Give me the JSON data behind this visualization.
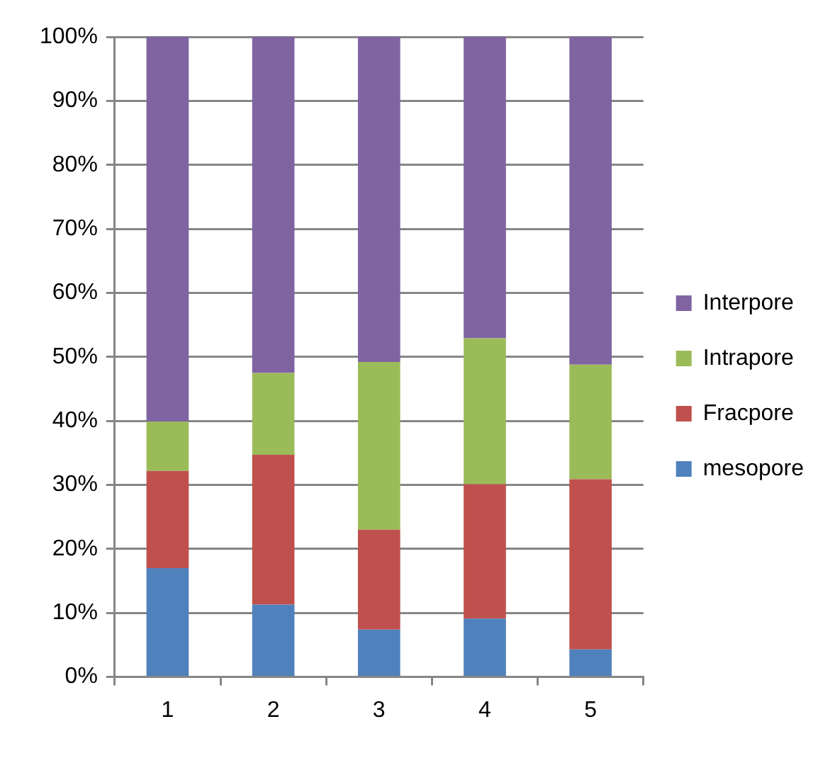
{
  "chart_data": {
    "type": "bar",
    "stacked": true,
    "categories": [
      "1",
      "2",
      "3",
      "4",
      "5"
    ],
    "series": [
      {
        "name": "mesopore",
        "color": "#4f81bd",
        "values": [
          17.0,
          11.3,
          7.4,
          9.1,
          4.3
        ]
      },
      {
        "name": "Fracpore",
        "color": "#c0504d",
        "values": [
          15.2,
          23.4,
          15.6,
          21.0,
          26.6
        ]
      },
      {
        "name": "Intrapore",
        "color": "#9bbb59",
        "values": [
          7.7,
          12.8,
          26.2,
          22.8,
          17.9
        ]
      },
      {
        "name": "Interpore",
        "color": "#8064a2",
        "values": [
          60.1,
          52.5,
          50.8,
          47.1,
          51.2
        ]
      }
    ],
    "ylim": [
      0,
      100
    ],
    "yticks": [
      {
        "value": 0,
        "label": "0%"
      },
      {
        "value": 10,
        "label": "10%"
      },
      {
        "value": 20,
        "label": "20%"
      },
      {
        "value": 30,
        "label": "30%"
      },
      {
        "value": 40,
        "label": "40%"
      },
      {
        "value": 50,
        "label": "50%"
      },
      {
        "value": 60,
        "label": "60%"
      },
      {
        "value": 70,
        "label": "70%"
      },
      {
        "value": 80,
        "label": "80%"
      },
      {
        "value": 90,
        "label": "90%"
      },
      {
        "value": 100,
        "label": "100%"
      }
    ],
    "grid": "y",
    "legend": "right"
  }
}
